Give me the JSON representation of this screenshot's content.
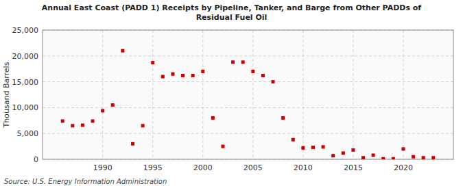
{
  "chart_data": {
    "type": "scatter",
    "title": "Annual East Coast (PADD 1) Receipts by Pipeline, Tanker, and Barge from Other PADDs of\nResidual Fuel Oil",
    "y_label": "Thousand Barrels",
    "source": "Source: U.S. Energy Information Administration",
    "color": "#cc0000",
    "marker": "square",
    "grid": true,
    "x": [
      1986,
      1987,
      1988,
      1989,
      1990,
      1991,
      1992,
      1993,
      1994,
      1995,
      1996,
      1997,
      1998,
      1999,
      2000,
      2001,
      2002,
      2003,
      2004,
      2005,
      2006,
      2007,
      2008,
      2009,
      2010,
      2011,
      2012,
      2013,
      2014,
      2015,
      2016,
      2017,
      2018,
      2019,
      2020,
      2021,
      2022,
      2023
    ],
    "values": [
      7400,
      6500,
      6600,
      7400,
      9400,
      10500,
      21000,
      3000,
      6500,
      18700,
      16000,
      16500,
      16200,
      16200,
      17000,
      8000,
      2500,
      18800,
      18800,
      17000,
      16200,
      15000,
      8000,
      3800,
      2200,
      2300,
      2400,
      700,
      1200,
      1800,
      300,
      800,
      100,
      100,
      2000,
      500,
      300,
      300
    ],
    "xlim": [
      1984,
      2025
    ],
    "xticks": [
      1990,
      1995,
      2000,
      2005,
      2010,
      2015,
      2020
    ],
    "ylim": [
      0,
      25000
    ],
    "yticks": [
      0,
      {
        "value": 5000,
        "label": "5,000"
      },
      {
        "value": 10000,
        "label": "10,000"
      },
      {
        "value": 15000,
        "label": "15,000"
      },
      {
        "value": 20000,
        "label": "20,000"
      },
      {
        "value": 25000,
        "label": "25,000"
      }
    ]
  }
}
